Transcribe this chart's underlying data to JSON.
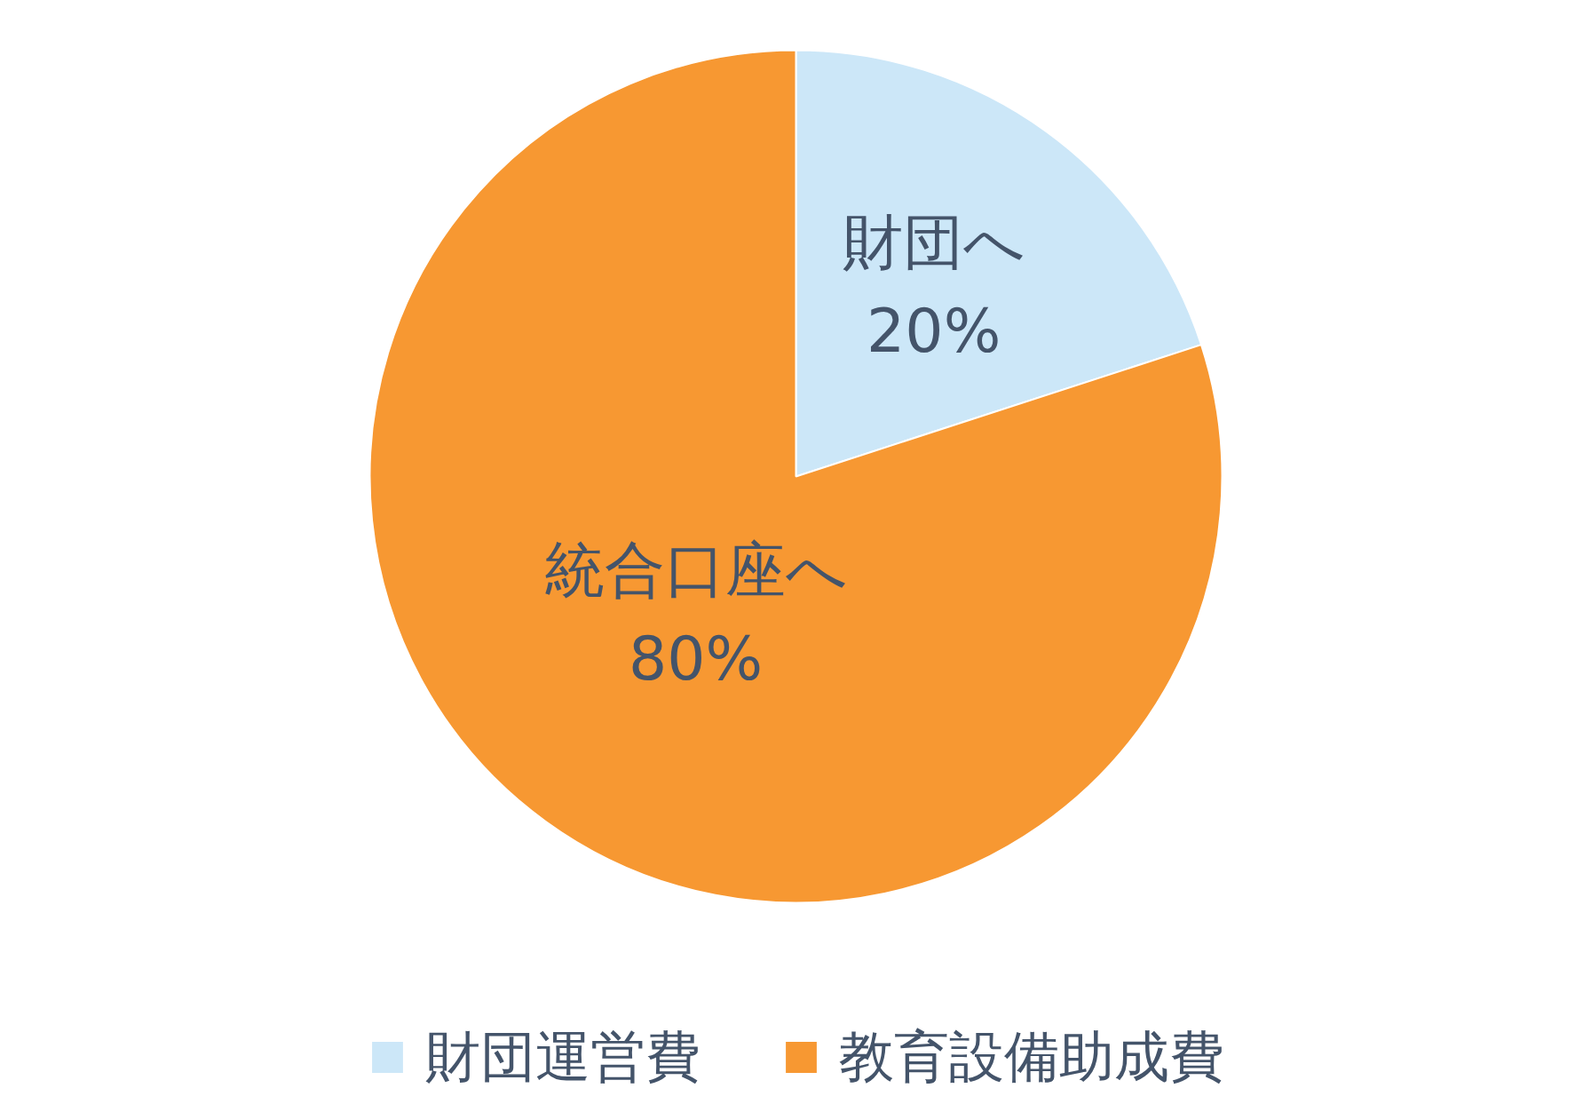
{
  "chart_data": {
    "type": "pie",
    "categories": [
      "財団運営費",
      "教育設備助成費"
    ],
    "values": [
      20,
      80
    ],
    "colors": [
      "#cce7f8",
      "#f79832"
    ],
    "value_labels": [
      "財団へ\n20%",
      "統合口座へ\n80%"
    ],
    "legend": "bottom"
  }
}
